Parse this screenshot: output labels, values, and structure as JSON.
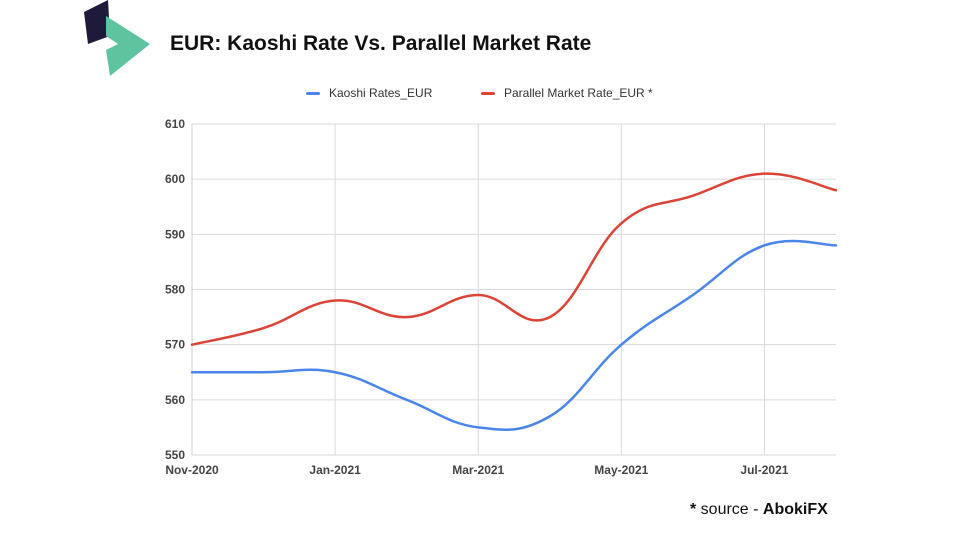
{
  "header": {
    "title": "EUR: Kaoshi Rate Vs. Parallel Market Rate"
  },
  "brand": {
    "logo_icon": "kaoshi-logo-icon",
    "colors": {
      "dark": "#1e1b3a",
      "green": "#5ec4a0"
    }
  },
  "footer": {
    "source_star": "*",
    "source_text": " source - ",
    "source_name": "AbokiFX"
  },
  "chart_data": {
    "type": "line",
    "title": "",
    "xlabel": "",
    "ylabel": "",
    "ylim": [
      550,
      610
    ],
    "yticks": [
      550,
      560,
      570,
      580,
      590,
      600,
      610
    ],
    "xticks": [
      "Nov-2020",
      "Jan-2021",
      "Mar-2021",
      "May-2021",
      "Jul-2021"
    ],
    "x": [
      "2020-11-01",
      "2020-12-01",
      "2021-01-01",
      "2021-02-01",
      "2021-03-01",
      "2021-04-01",
      "2021-05-01",
      "2021-06-01",
      "2021-07-01",
      "2021-08-01"
    ],
    "series": [
      {
        "name": "Kaoshi Rates_EUR",
        "color": "#4a86e8",
        "values": [
          565,
          565,
          565,
          560,
          555,
          557,
          570,
          579,
          588,
          588
        ]
      },
      {
        "name": "Parallel Market Rate_EUR *",
        "color": "#db4437",
        "values": [
          570,
          573,
          578,
          575,
          579,
          575,
          592,
          597,
          601,
          598
        ]
      }
    ],
    "grid": true,
    "legend_position": "top-center"
  }
}
